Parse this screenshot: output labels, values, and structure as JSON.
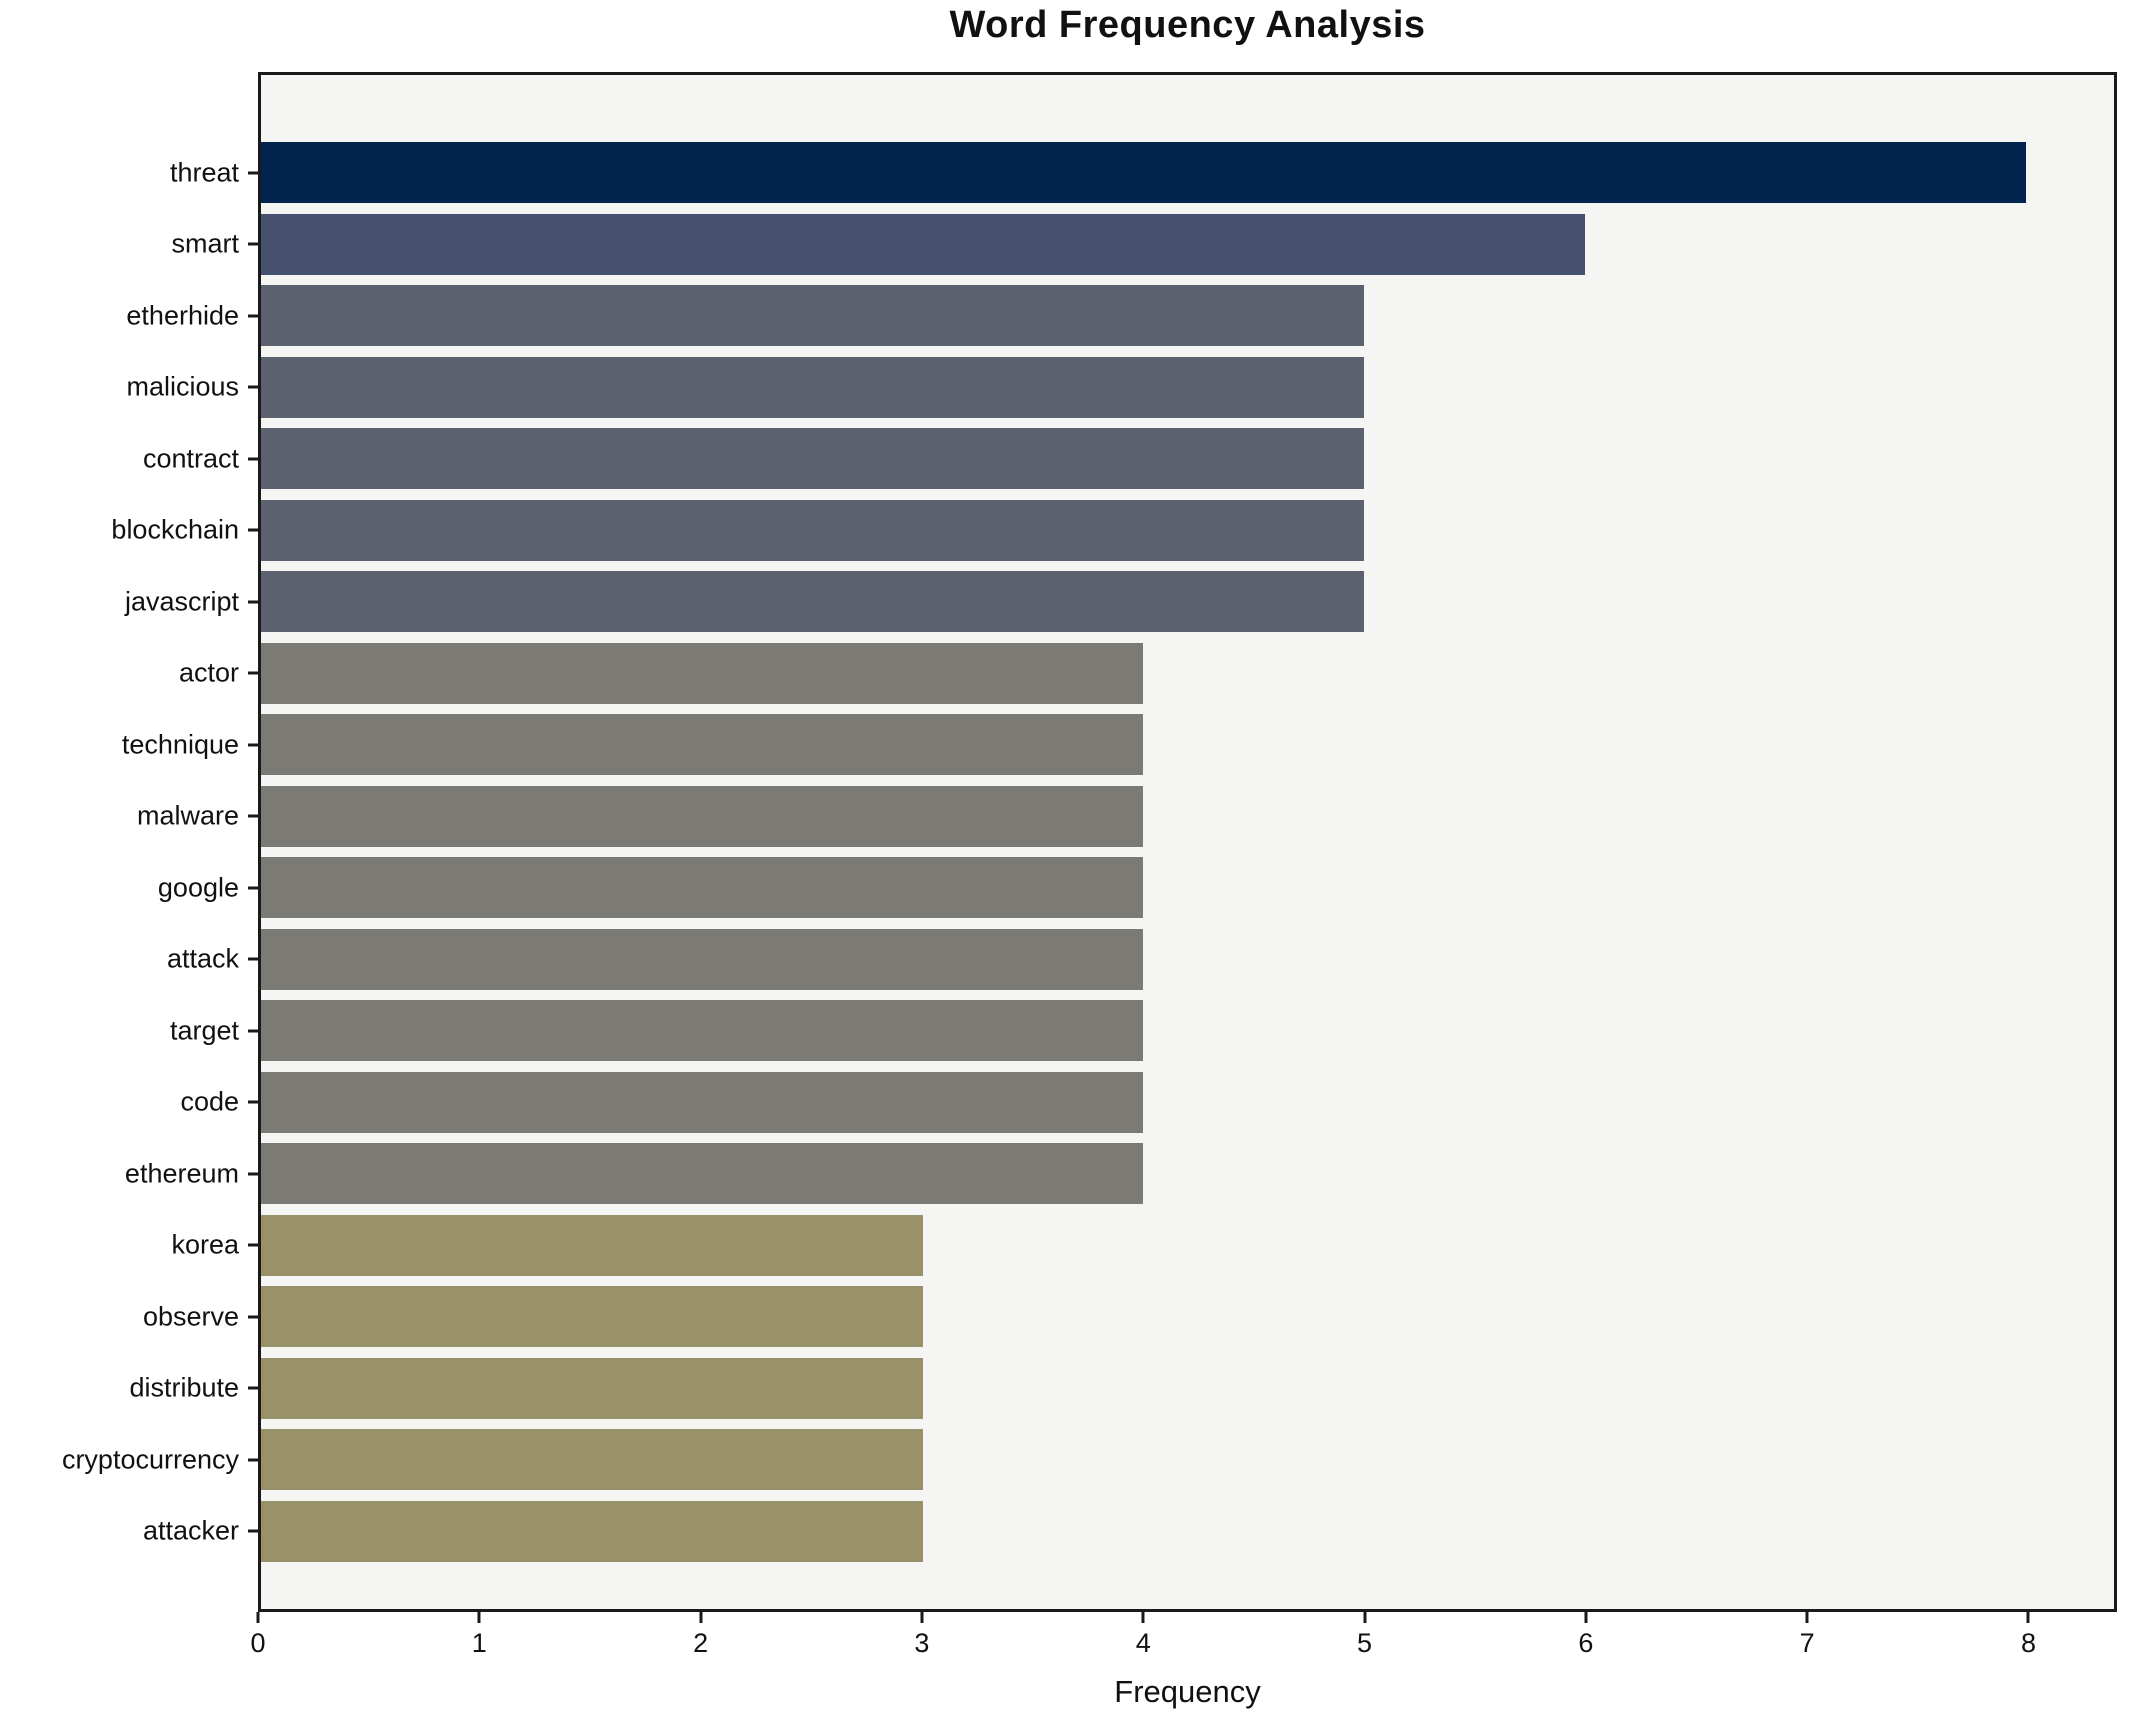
{
  "chart_data": {
    "type": "bar",
    "orientation": "horizontal",
    "title": "Word Frequency Analysis",
    "xlabel": "Frequency",
    "ylabel": "",
    "categories": [
      "threat",
      "smart",
      "etherhide",
      "malicious",
      "contract",
      "blockchain",
      "javascript",
      "actor",
      "technique",
      "malware",
      "google",
      "attack",
      "target",
      "code",
      "ethereum",
      "korea",
      "observe",
      "distribute",
      "cryptocurrency",
      "attacker"
    ],
    "values": [
      8,
      6,
      5,
      5,
      5,
      5,
      5,
      4,
      4,
      4,
      4,
      4,
      4,
      4,
      4,
      3,
      3,
      3,
      3,
      3
    ],
    "bar_colors": [
      "#02234e",
      "#46506f",
      "#5c6170",
      "#5c6170",
      "#5c6170",
      "#5c6170",
      "#5c6170",
      "#7b7a74",
      "#7b7a74",
      "#7b7a74",
      "#7b7a74",
      "#7b7a74",
      "#7b7a74",
      "#7b7a74",
      "#7b7a74",
      "#999168",
      "#999168",
      "#999168",
      "#999168",
      "#999168"
    ],
    "xticks": [
      0,
      1,
      2,
      3,
      4,
      5,
      6,
      7,
      8
    ],
    "xlim": [
      0,
      8.4
    ],
    "grid": false,
    "legend": "none",
    "plot_background": "#f5f5f3",
    "figure_background": "#ffffff"
  }
}
